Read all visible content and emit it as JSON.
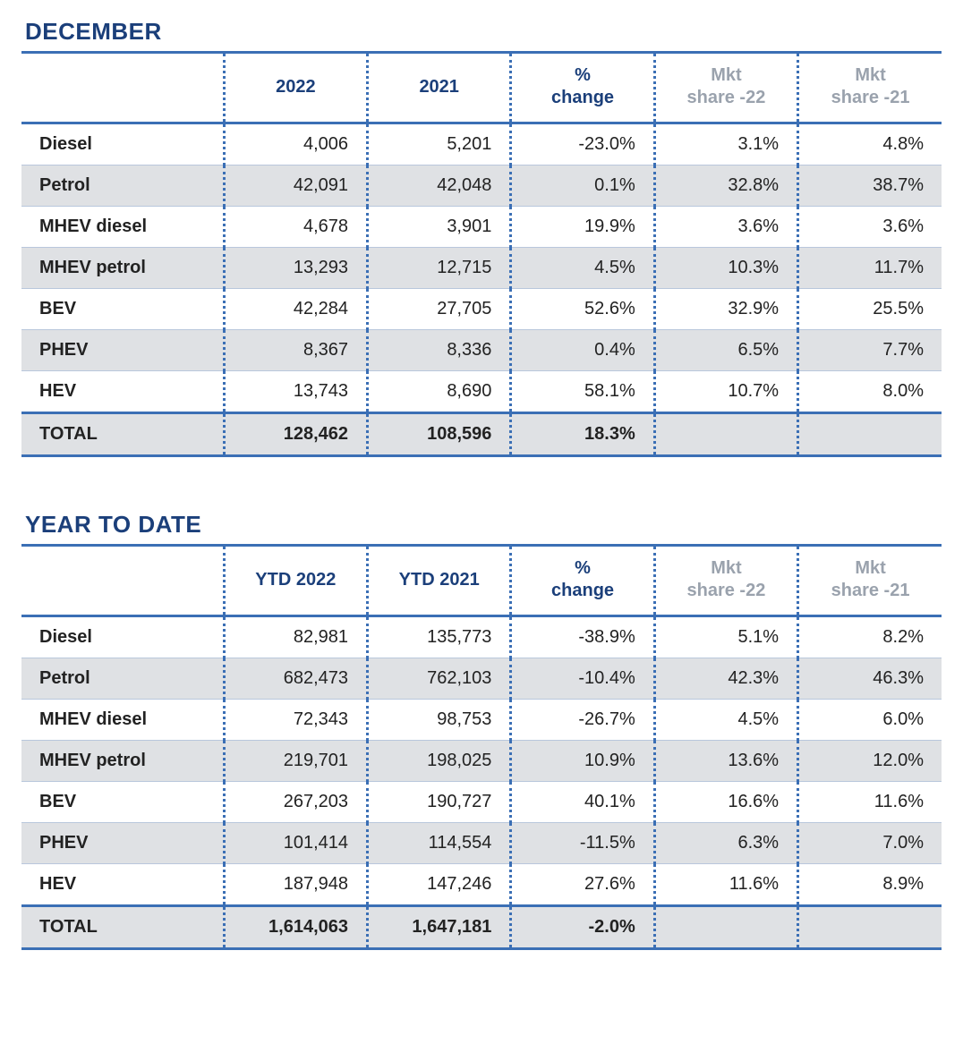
{
  "colors": {
    "title": "#1b3f7a",
    "header_primary": "#1b3f7a",
    "header_muted": "#9aa2ad",
    "rule": "#3b6fb5",
    "row_rule": "#b9c7dc",
    "dot": "#3b6fb5",
    "shade": "#dfe1e4",
    "text": "#222222"
  },
  "tables": [
    {
      "title": "DECEMBER",
      "columns": [
        {
          "label": "",
          "muted": false
        },
        {
          "label": "2022",
          "muted": false
        },
        {
          "label": "2021",
          "muted": false
        },
        {
          "label": "%\nchange",
          "muted": false
        },
        {
          "label": "Mkt\nshare -22",
          "muted": true
        },
        {
          "label": "Mkt\nshare -21",
          "muted": true
        }
      ],
      "rows": [
        {
          "label": "Diesel",
          "cells": [
            "4,006",
            "5,201",
            "-23.0%",
            "3.1%",
            "4.8%"
          ],
          "shaded": false
        },
        {
          "label": "Petrol",
          "cells": [
            "42,091",
            "42,048",
            "0.1%",
            "32.8%",
            "38.7%"
          ],
          "shaded": true
        },
        {
          "label": "MHEV diesel",
          "cells": [
            "4,678",
            "3,901",
            "19.9%",
            "3.6%",
            "3.6%"
          ],
          "shaded": false
        },
        {
          "label": "MHEV petrol",
          "cells": [
            "13,293",
            "12,715",
            "4.5%",
            "10.3%",
            "11.7%"
          ],
          "shaded": true
        },
        {
          "label": "BEV",
          "cells": [
            "42,284",
            "27,705",
            "52.6%",
            "32.9%",
            "25.5%"
          ],
          "shaded": false
        },
        {
          "label": "PHEV",
          "cells": [
            "8,367",
            "8,336",
            "0.4%",
            "6.5%",
            "7.7%"
          ],
          "shaded": true
        },
        {
          "label": "HEV",
          "cells": [
            "13,743",
            "8,690",
            "58.1%",
            "10.7%",
            "8.0%"
          ],
          "shaded": false
        }
      ],
      "total": {
        "label": "TOTAL",
        "cells": [
          "128,462",
          "108,596",
          "18.3%",
          "",
          ""
        ],
        "shaded": true
      }
    },
    {
      "title": "YEAR TO DATE",
      "columns": [
        {
          "label": "",
          "muted": false
        },
        {
          "label": "YTD 2022",
          "muted": false
        },
        {
          "label": "YTD 2021",
          "muted": false
        },
        {
          "label": "%\nchange",
          "muted": false
        },
        {
          "label": "Mkt\nshare -22",
          "muted": true
        },
        {
          "label": "Mkt\nshare -21",
          "muted": true
        }
      ],
      "rows": [
        {
          "label": "Diesel",
          "cells": [
            "82,981",
            "135,773",
            "-38.9%",
            "5.1%",
            "8.2%"
          ],
          "shaded": false
        },
        {
          "label": "Petrol",
          "cells": [
            "682,473",
            "762,103",
            "-10.4%",
            "42.3%",
            "46.3%"
          ],
          "shaded": true
        },
        {
          "label": "MHEV diesel",
          "cells": [
            "72,343",
            "98,753",
            "-26.7%",
            "4.5%",
            "6.0%"
          ],
          "shaded": false
        },
        {
          "label": "MHEV petrol",
          "cells": [
            "219,701",
            "198,025",
            "10.9%",
            "13.6%",
            "12.0%"
          ],
          "shaded": true
        },
        {
          "label": "BEV",
          "cells": [
            "267,203",
            "190,727",
            "40.1%",
            "16.6%",
            "11.6%"
          ],
          "shaded": false
        },
        {
          "label": "PHEV",
          "cells": [
            "101,414",
            "114,554",
            "-11.5%",
            "6.3%",
            "7.0%"
          ],
          "shaded": true
        },
        {
          "label": "HEV",
          "cells": [
            "187,948",
            "147,246",
            "27.6%",
            "11.6%",
            "8.9%"
          ],
          "shaded": false
        }
      ],
      "total": {
        "label": "TOTAL",
        "cells": [
          "1,614,063",
          "1,647,181",
          "-2.0%",
          "",
          ""
        ],
        "shaded": true
      }
    }
  ]
}
